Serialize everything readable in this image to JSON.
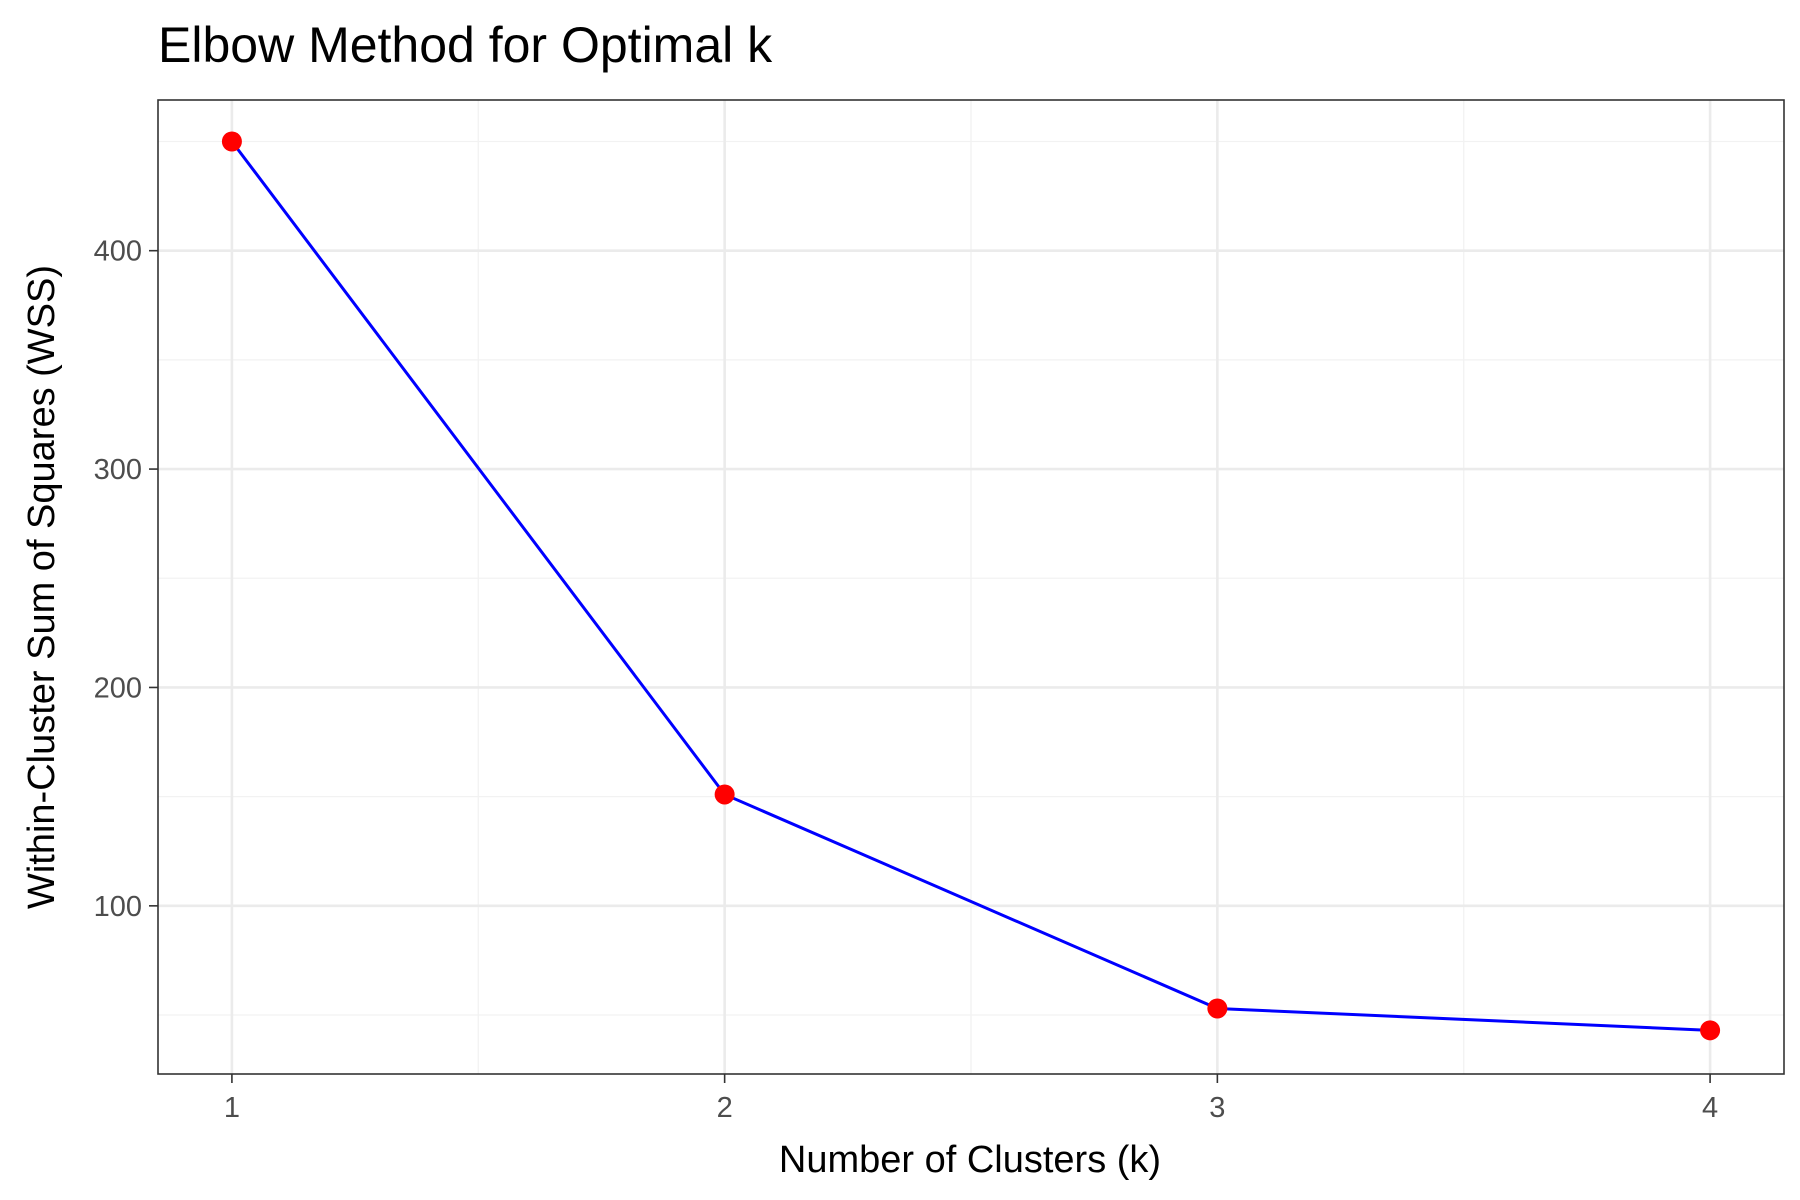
{
  "chart_data": {
    "type": "line",
    "title": "Elbow Method for Optimal k",
    "xlabel": "Number of Clusters (k)",
    "ylabel": "Within-Cluster Sum of Squares (WSS)",
    "x": [
      1,
      2,
      3,
      4
    ],
    "x_ticks": [
      1,
      2,
      3,
      4
    ],
    "y_ticks": [
      100,
      200,
      300,
      400
    ],
    "xlim": [
      0.85,
      4.15
    ],
    "ylim": [
      23,
      469
    ],
    "grid": true,
    "series": [
      {
        "values": [
          450,
          151,
          53,
          43
        ],
        "line_color": "#0000ff",
        "point_color": "#ff0000"
      }
    ],
    "colors": {
      "background": "#ffffff",
      "panel_border": "#333333",
      "grid_major": "#ebebeb",
      "grid_minor": "#f2f2f2",
      "tick_text": "#4d4d4d"
    }
  }
}
